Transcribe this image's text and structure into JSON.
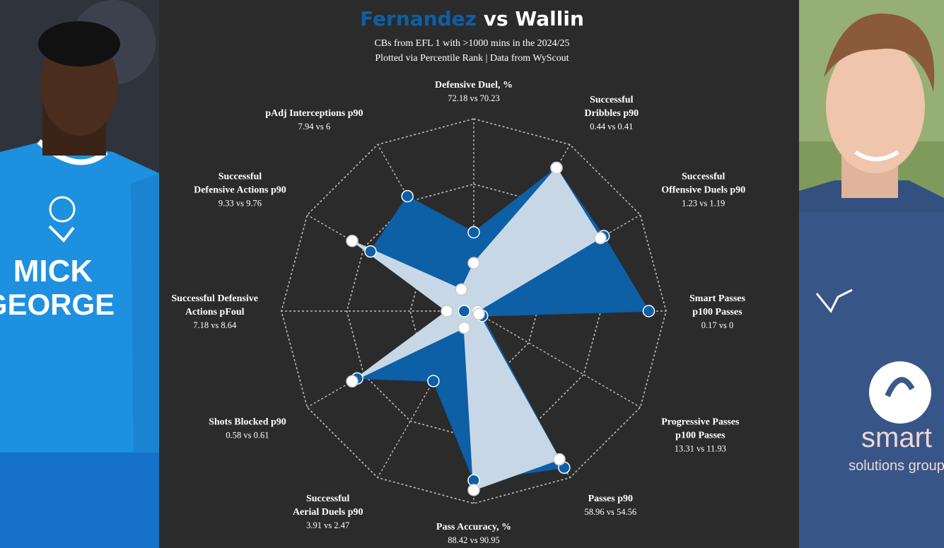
{
  "header": {
    "player1": "Fernandez",
    "vs": "vs",
    "player2": "Wallin",
    "subtitle_line1": "CBs from EFL 1 with  >1000 mins in the 2024/25",
    "subtitle_line2": "Plotted via Percentile Rank | Data from WyScout"
  },
  "colors": {
    "background": "#2b2b2b",
    "player1": "#0d5fa6",
    "player2": "#c8d7e6",
    "player2_marker": "#ffffff",
    "grid": "#bdbdbd"
  },
  "photos": {
    "left": {
      "shirt_text_line1": "MICK",
      "shirt_text_line2": "GEORGE"
    },
    "right": {
      "shirt_text_line1": "smart",
      "shirt_text_line2": "solutions group"
    }
  },
  "chart_data": {
    "type": "radar",
    "scale": "percentile rank",
    "rlim": [
      0,
      100
    ],
    "grid": true,
    "series": [
      {
        "name": "Fernandez"
      },
      {
        "name": "Wallin"
      }
    ],
    "axes": [
      {
        "label_lines": [
          "Defensive Duel, %"
        ],
        "value_text": "72.18 vs 70.23",
        "values": [
          41,
          25
        ]
      },
      {
        "label_lines": [
          "Successful",
          "Dribbles p90"
        ],
        "value_text": "0.44 vs 0.41",
        "values": [
          86,
          86
        ]
      },
      {
        "label_lines": [
          "Successful",
          "Offensive Duels p90"
        ],
        "value_text": "1.23 vs 1.19",
        "values": [
          78,
          76
        ]
      },
      {
        "label_lines": [
          "Smart Passes",
          "p100 Passes"
        ],
        "value_text": "0.17 vs 0",
        "values": [
          91,
          2
        ]
      },
      {
        "label_lines": [
          "Progressive Passes",
          "p100 Passes"
        ],
        "value_text": "13.31 vs 11.93",
        "values": [
          5,
          3
        ]
      },
      {
        "label_lines": [
          "Passes p90"
        ],
        "value_text": "58.96 vs 54.56",
        "values": [
          94,
          89
        ]
      },
      {
        "label_lines": [
          "Pass Accuracy, %"
        ],
        "value_text": "88.42 vs 90.95",
        "values": [
          88,
          93
        ]
      },
      {
        "label_lines": [
          "Successful",
          "Aerial Duels p90"
        ],
        "value_text": "3.91 vs 2.47",
        "values": [
          42,
          10
        ]
      },
      {
        "label_lines": [
          "Shots Blocked p90"
        ],
        "value_text": "0.58 vs 0.61",
        "values": [
          70,
          73
        ]
      },
      {
        "label_lines": [
          "Successful Defensive",
          "Actions pFoul"
        ],
        "value_text": "7.18 vs 8.64",
        "values": [
          5,
          14
        ]
      },
      {
        "label_lines": [
          "Successful",
          "Defensive Actions p90"
        ],
        "value_text": "9.33 vs 9.76",
        "values": [
          62,
          73
        ]
      },
      {
        "label_lines": [
          "pAdj Interceptions p90"
        ],
        "value_text": "7.94 vs 6",
        "values": [
          69,
          13
        ]
      }
    ]
  }
}
